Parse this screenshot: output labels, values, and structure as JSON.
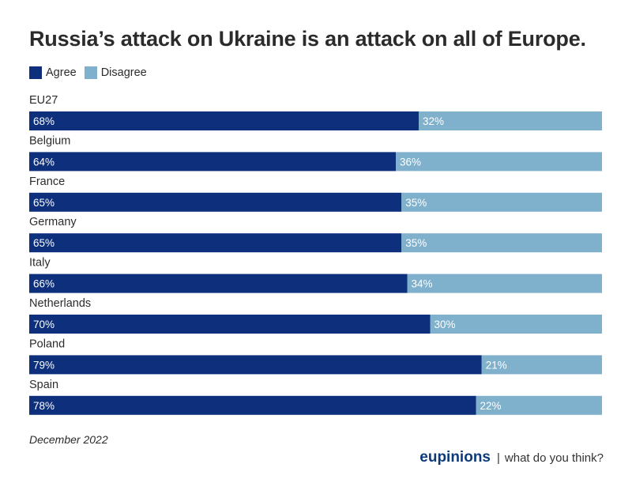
{
  "title": "Russia’s attack on Ukraine is an attack on all of Europe.",
  "footer": {
    "date": "December 2022",
    "brand_name": "eupinions",
    "separator": "|",
    "tagline": "what do you think?"
  },
  "colors": {
    "agree": "#0d2f7c",
    "disagree": "#7fb0cc"
  },
  "chart_data": {
    "type": "bar",
    "orientation": "horizontal",
    "stacked": true,
    "normalized_to": 100,
    "categories": [
      "EU27",
      "Belgium",
      "France",
      "Germany",
      "Italy",
      "Netherlands",
      "Poland",
      "Spain"
    ],
    "series": [
      {
        "name": "Agree",
        "values": [
          68,
          64,
          65,
          65,
          66,
          70,
          79,
          78
        ],
        "labels": [
          "68%",
          "64%",
          "65%",
          "65%",
          "66%",
          "70%",
          "79%",
          "78%"
        ]
      },
      {
        "name": "Disagree",
        "values": [
          32,
          36,
          35,
          35,
          34,
          30,
          21,
          22
        ],
        "labels": [
          "32%",
          "36%",
          "35%",
          "35%",
          "34%",
          "30%",
          "21%",
          "22%"
        ]
      }
    ],
    "legend_position": "top-left",
    "grid": false
  }
}
